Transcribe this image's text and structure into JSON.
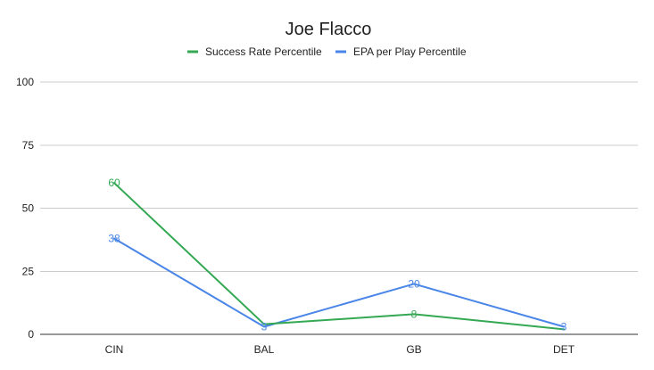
{
  "chart_data": {
    "type": "line",
    "title": "Joe Flacco",
    "xlabel": "",
    "ylabel": "",
    "categories": [
      "CIN",
      "BAL",
      "GB",
      "DET"
    ],
    "ylim": [
      0,
      100
    ],
    "yticks": [
      0,
      25,
      50,
      75,
      100
    ],
    "grid": true,
    "legend_position": "top",
    "series": [
      {
        "name": "Success Rate Percentile",
        "color": "#34a853",
        "values": [
          60,
          4,
          8,
          2
        ],
        "labels": [
          "60",
          "",
          "8",
          ""
        ]
      },
      {
        "name": "EPA per Play Percentile",
        "color": "#4a86e8",
        "values": [
          38,
          3,
          20,
          3
        ],
        "labels": [
          "38",
          "3",
          "20",
          "3"
        ]
      }
    ]
  }
}
